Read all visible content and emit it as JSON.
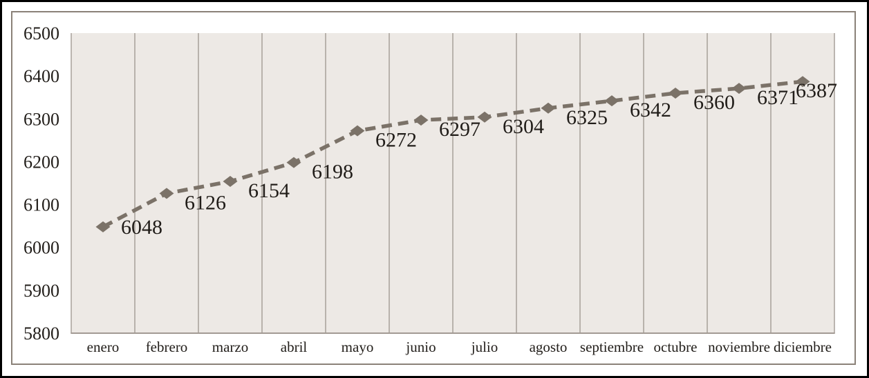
{
  "chart_data": {
    "type": "line",
    "title": "",
    "categories": [
      "enero",
      "febrero",
      "marzo",
      "abril",
      "mayo",
      "junio",
      "julio",
      "agosto",
      "septiembre",
      "octubre",
      "noviembre",
      "diciembre"
    ],
    "series": [
      {
        "values": [
          6048,
          6126,
          6154,
          6198,
          6272,
          6297,
          6304,
          6325,
          6342,
          6360,
          6371,
          6387
        ]
      }
    ],
    "data_labels": true,
    "ylim": [
      5800,
      6500
    ],
    "ytick_interval": 100,
    "ytick_labels": [
      "6500",
      "6400",
      "6300",
      "6200",
      "6100",
      "6000",
      "5900",
      "5800"
    ],
    "grid": "vertical-only",
    "legend_position": "none",
    "line_style": "dashed",
    "marker_style": "diamond",
    "colors": {
      "series": "#7b7268",
      "plot_background": "#ede9e5",
      "gridline": "#a29a93",
      "text": "#211d19",
      "frame_border": "#8a8178",
      "outer_border": "#000000",
      "background": "#ffffff"
    }
  }
}
